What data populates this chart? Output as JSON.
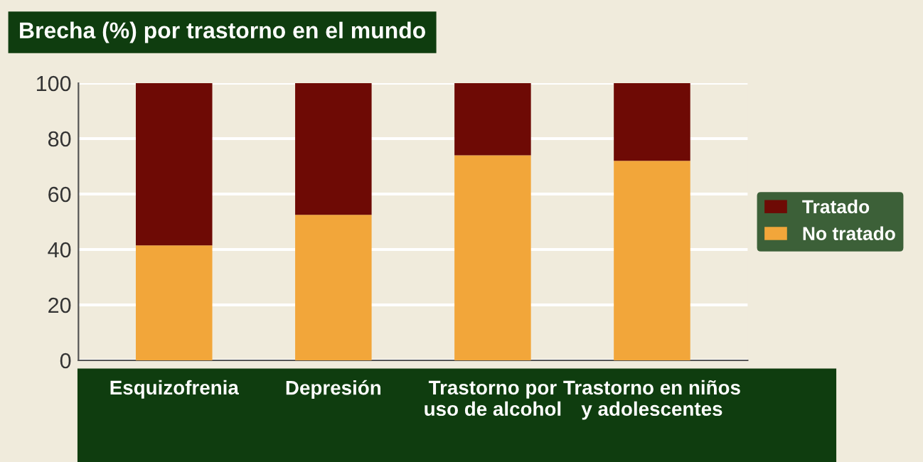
{
  "chart_data": {
    "type": "bar",
    "title": "Brecha (%) por trastorno en el mundo",
    "categories": [
      "Esquizofrenia",
      "Depresión",
      "Trastorno por\nuso de alcohol",
      "Trastorno en niños\ny adolescentes"
    ],
    "stacked": true,
    "series": [
      {
        "name": "No tratado",
        "color": "#f2a63a",
        "values": [
          41.5,
          52.5,
          74,
          72
        ]
      },
      {
        "name": "Tratado",
        "color": "#6e0a05",
        "values": [
          58.5,
          47.5,
          26,
          28
        ]
      }
    ],
    "ylim": [
      0,
      100
    ],
    "yticks": [
      0,
      20,
      40,
      60,
      80,
      100
    ],
    "grid": "y",
    "legend": "right"
  }
}
